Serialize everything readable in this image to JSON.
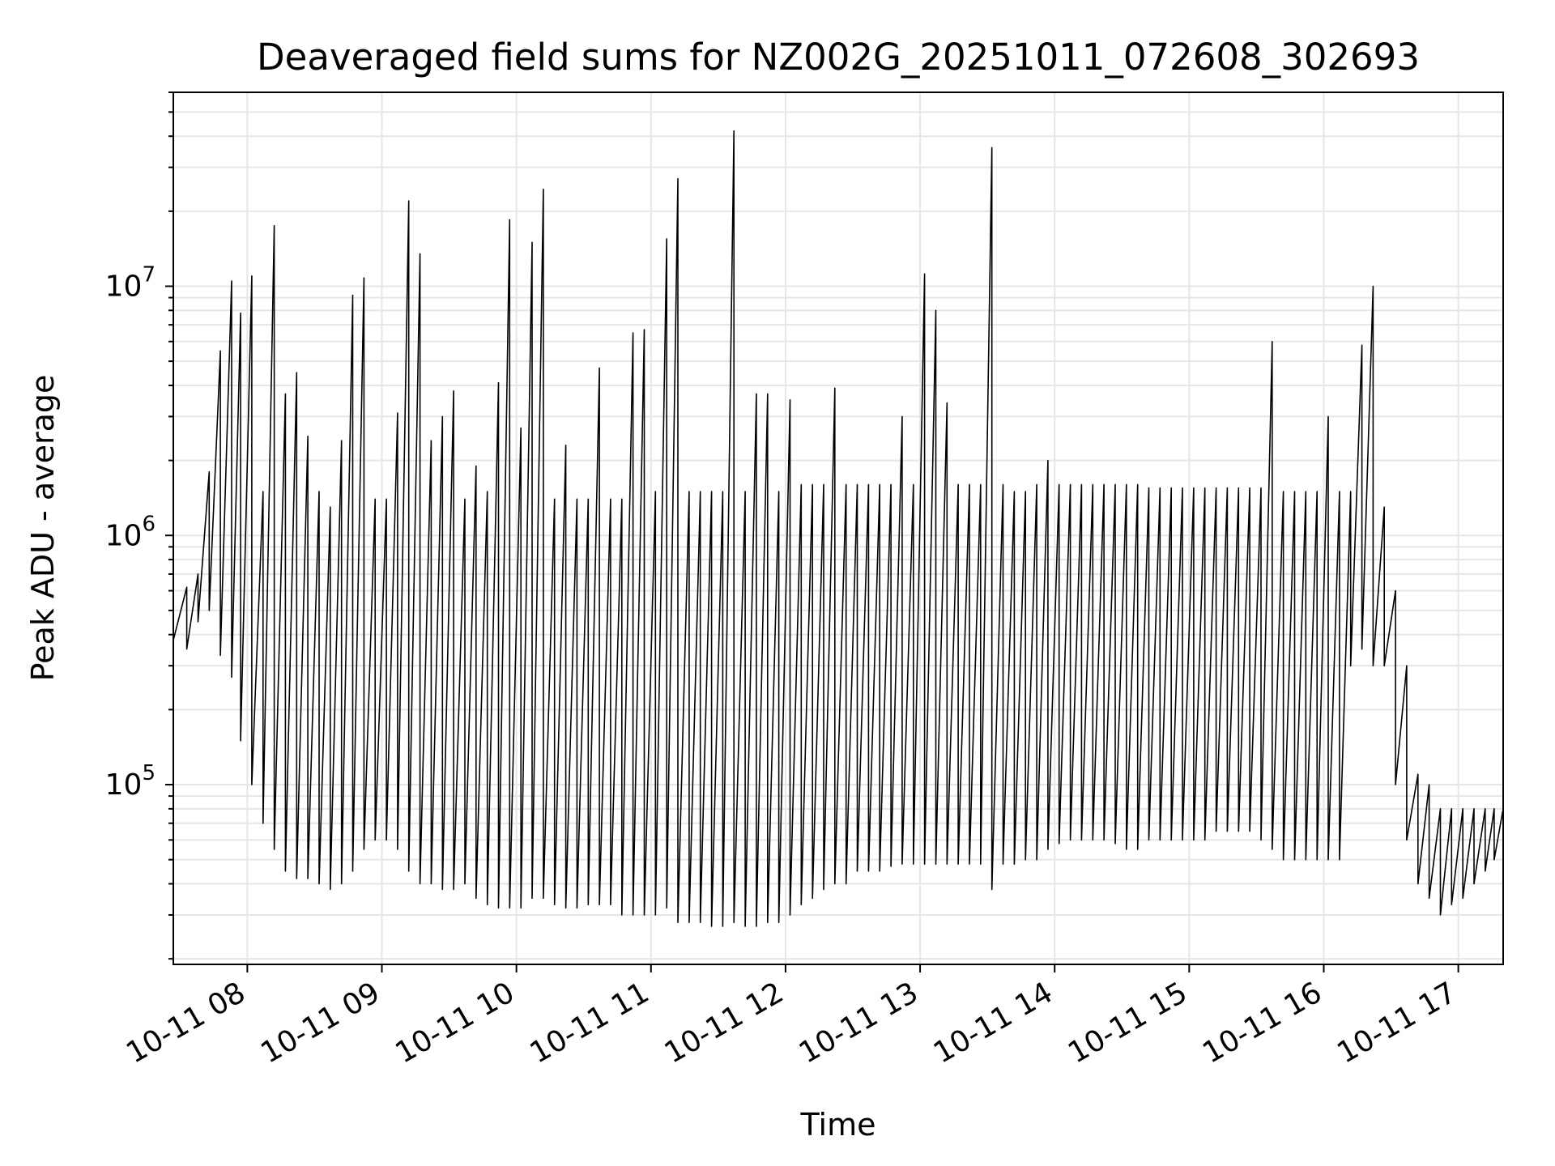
{
  "chart_data": {
    "type": "line",
    "title": "Deaveraged field sums for NZ002G_20251011_072608_302693",
    "xlabel": "Time",
    "ylabel": "Peak ADU - average",
    "yscale": "log",
    "grid": true,
    "xlim": [
      "2025-10-11 07:27",
      "2025-10-11 17:20"
    ],
    "ylim": [
      19000,
      60000000
    ],
    "x_ticks": [
      "10-11 08",
      "10-11 09",
      "10-11 10",
      "10-11 11",
      "10-11 12",
      "10-11 13",
      "10-11 14",
      "10-11 15",
      "10-11 16",
      "10-11 17"
    ],
    "y_ticks": [
      {
        "value": 100000,
        "base": "10",
        "exp": "5"
      },
      {
        "value": 1000000,
        "base": "10",
        "exp": "6"
      },
      {
        "value": 10000000,
        "base": "10",
        "exp": "7"
      }
    ],
    "line_color": "#000000",
    "series": [
      {
        "x": [
          "2025-10-11 07:27",
          "2025-10-11 07:33",
          "2025-10-11 07:38",
          "2025-10-11 07:43",
          "2025-10-11 07:48",
          "2025-10-11 07:53",
          "2025-10-11 07:57",
          "2025-10-11 08:02",
          "2025-10-11 08:07",
          "2025-10-11 08:12",
          "2025-10-11 08:17",
          "2025-10-11 08:22",
          "2025-10-11 08:27",
          "2025-10-11 08:32",
          "2025-10-11 08:37",
          "2025-10-11 08:42",
          "2025-10-11 08:47",
          "2025-10-11 08:52",
          "2025-10-11 08:57",
          "2025-10-11 09:02",
          "2025-10-11 09:07",
          "2025-10-11 09:12",
          "2025-10-11 09:17",
          "2025-10-11 09:22",
          "2025-10-11 09:27",
          "2025-10-11 09:32",
          "2025-10-11 09:37",
          "2025-10-11 09:42",
          "2025-10-11 09:47",
          "2025-10-11 09:52",
          "2025-10-11 09:57",
          "2025-10-11 10:02",
          "2025-10-11 10:07",
          "2025-10-11 10:12",
          "2025-10-11 10:17",
          "2025-10-11 10:22",
          "2025-10-11 10:27",
          "2025-10-11 10:32",
          "2025-10-11 10:37",
          "2025-10-11 10:42",
          "2025-10-11 10:47",
          "2025-10-11 10:52",
          "2025-10-11 10:57",
          "2025-10-11 11:02",
          "2025-10-11 11:07",
          "2025-10-11 11:12",
          "2025-10-11 11:17",
          "2025-10-11 11:22",
          "2025-10-11 11:27",
          "2025-10-11 11:32",
          "2025-10-11 11:37",
          "2025-10-11 11:42",
          "2025-10-11 11:47",
          "2025-10-11 11:52",
          "2025-10-11 11:57",
          "2025-10-11 12:02",
          "2025-10-11 12:07",
          "2025-10-11 12:12",
          "2025-10-11 12:17",
          "2025-10-11 12:22",
          "2025-10-11 12:27",
          "2025-10-11 12:32",
          "2025-10-11 12:37",
          "2025-10-11 12:42",
          "2025-10-11 12:47",
          "2025-10-11 12:52",
          "2025-10-11 12:57",
          "2025-10-11 13:02",
          "2025-10-11 13:07",
          "2025-10-11 13:12",
          "2025-10-11 13:17",
          "2025-10-11 13:22",
          "2025-10-11 13:27",
          "2025-10-11 13:32",
          "2025-10-11 13:37",
          "2025-10-11 13:42",
          "2025-10-11 13:47",
          "2025-10-11 13:52",
          "2025-10-11 13:57",
          "2025-10-11 14:02",
          "2025-10-11 14:07",
          "2025-10-11 14:12",
          "2025-10-11 14:17",
          "2025-10-11 14:22",
          "2025-10-11 14:27",
          "2025-10-11 14:32",
          "2025-10-11 14:37",
          "2025-10-11 14:42",
          "2025-10-11 14:47",
          "2025-10-11 14:52",
          "2025-10-11 14:57",
          "2025-10-11 15:02",
          "2025-10-11 15:07",
          "2025-10-11 15:12",
          "2025-10-11 15:17",
          "2025-10-11 15:22",
          "2025-10-11 15:27",
          "2025-10-11 15:32",
          "2025-10-11 15:37",
          "2025-10-11 15:42",
          "2025-10-11 15:47",
          "2025-10-11 15:52",
          "2025-10-11 15:57",
          "2025-10-11 16:02",
          "2025-10-11 16:07",
          "2025-10-11 16:12",
          "2025-10-11 16:17",
          "2025-10-11 16:22",
          "2025-10-11 16:27",
          "2025-10-11 16:32",
          "2025-10-11 16:37",
          "2025-10-11 16:42",
          "2025-10-11 16:47",
          "2025-10-11 16:52",
          "2025-10-11 16:57",
          "2025-10-11 17:02",
          "2025-10-11 17:07",
          "2025-10-11 17:12",
          "2025-10-11 17:16",
          "2025-10-11 17:20"
        ],
        "max": [
          600000,
          620000,
          700000,
          1800000,
          5500000,
          10500000,
          7800000,
          11000000,
          1500000,
          17500000,
          3700000,
          4500000,
          2500000,
          1500000,
          1300000,
          2400000,
          9200000,
          10800000,
          1400000,
          1400000,
          3100000,
          22000000,
          13500000,
          2400000,
          3000000,
          3800000,
          1400000,
          1900000,
          1500000,
          4100000,
          18500000,
          2700000,
          15000000,
          24500000,
          1400000,
          2300000,
          1400000,
          1400000,
          4700000,
          1400000,
          1400000,
          6500000,
          6700000,
          1500000,
          15500000,
          27000000,
          1500000,
          1500000,
          1500000,
          1500000,
          42000000,
          1500000,
          3700000,
          3700000,
          1500000,
          3500000,
          1600000,
          1600000,
          1600000,
          3900000,
          1600000,
          1600000,
          1600000,
          1600000,
          1600000,
          3000000,
          1600000,
          11200000,
          8000000,
          3400000,
          1600000,
          1600000,
          1600000,
          36000000,
          1600000,
          1500000,
          1500000,
          1600000,
          2000000,
          1600000,
          1600000,
          1600000,
          1600000,
          1600000,
          1600000,
          1600000,
          1600000,
          1550000,
          1550000,
          1550000,
          1550000,
          1550000,
          1550000,
          1550000,
          1550000,
          1550000,
          1550000,
          1550000,
          6000000,
          1500000,
          1500000,
          1500000,
          1500000,
          3000000,
          1500000,
          1500000,
          5800000,
          10000000,
          1300000,
          600000,
          300000,
          110000,
          100000,
          80000,
          80000,
          80000,
          80000,
          80000,
          80000,
          80000
        ],
        "min": [
          380000,
          350000,
          450000,
          500000,
          330000,
          270000,
          150000,
          100000,
          70000,
          55000,
          45000,
          42000,
          42000,
          40000,
          38000,
          40000,
          45000,
          55000,
          60000,
          60000,
          55000,
          45000,
          40000,
          40000,
          38000,
          38000,
          40000,
          35000,
          33000,
          32000,
          32000,
          32000,
          35000,
          35000,
          33000,
          32000,
          32000,
          33000,
          33000,
          33000,
          30000,
          30000,
          30000,
          30000,
          32000,
          28000,
          28000,
          28000,
          27000,
          27000,
          28000,
          27000,
          27000,
          28000,
          28000,
          30000,
          33000,
          35000,
          38000,
          40000,
          40000,
          45000,
          45000,
          45000,
          47000,
          48000,
          48000,
          48000,
          48000,
          48000,
          48000,
          48000,
          48000,
          38000,
          48000,
          48000,
          50000,
          50000,
          55000,
          58000,
          60000,
          60000,
          60000,
          60000,
          58000,
          55000,
          55000,
          60000,
          60000,
          60000,
          60000,
          60000,
          60000,
          65000,
          65000,
          65000,
          65000,
          60000,
          55000,
          50000,
          50000,
          50000,
          50000,
          50000,
          50000,
          300000,
          350000,
          300000,
          300000,
          100000,
          60000,
          40000,
          35000,
          30000,
          33000,
          35000,
          40000,
          45000,
          50000,
          60000
        ]
      }
    ]
  }
}
